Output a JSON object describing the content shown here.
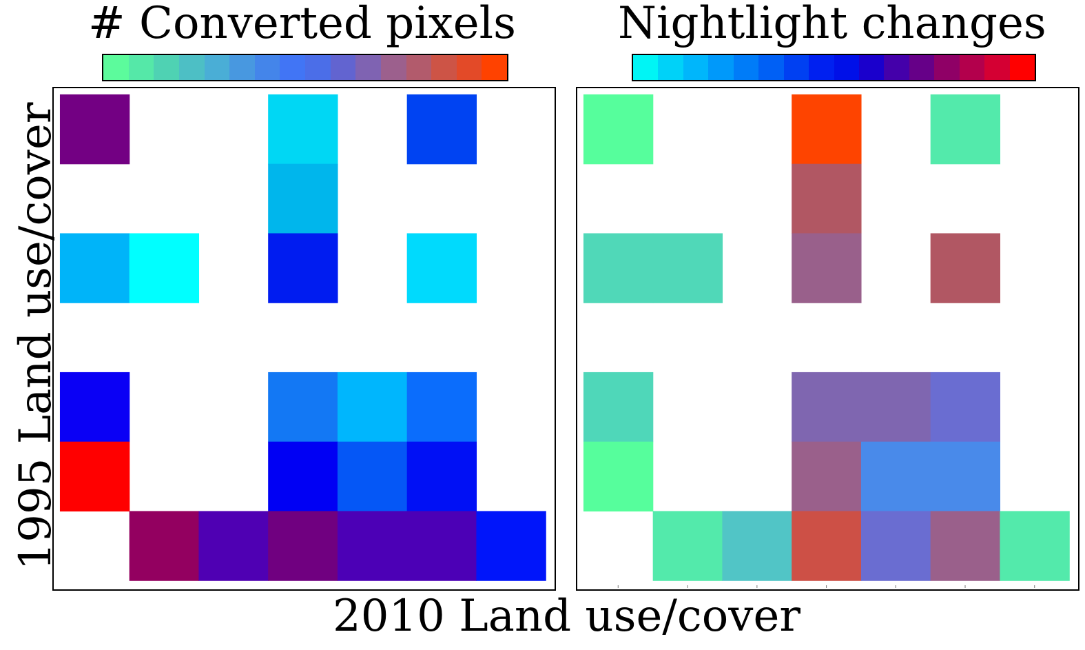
{
  "chart_data": [
    {
      "type": "heatmap",
      "title": "# Converted pixels",
      "xlabel": "2010 Land use/cover",
      "ylabel": "1995 Land use/cover",
      "grid": false,
      "n_rows": 7,
      "n_cols": 7,
      "colorbar": [
        "#5cfb9c",
        "#55e8a8",
        "#4fd2b3",
        "#4dbfc5",
        "#4aaed6",
        "#4898e0",
        "#4485ea",
        "#4175f5",
        "#4b6ee8",
        "#6264d0",
        "#7f63b2",
        "#9c608d",
        "#b25b6c",
        "#cd5446",
        "#e34a28",
        "#ff4200"
      ],
      "cells": [
        {
          "row": 0,
          "col": 0,
          "color": "#730083"
        },
        {
          "row": 0,
          "col": 3,
          "color": "#00d7f4"
        },
        {
          "row": 0,
          "col": 5,
          "color": "#0043f2"
        },
        {
          "row": 1,
          "col": 3,
          "color": "#00b6ec"
        },
        {
          "row": 2,
          "col": 0,
          "color": "#00b4f9"
        },
        {
          "row": 2,
          "col": 1,
          "color": "#00ffff"
        },
        {
          "row": 2,
          "col": 3,
          "color": "#001cf0"
        },
        {
          "row": 2,
          "col": 5,
          "color": "#00dafd"
        },
        {
          "row": 4,
          "col": 0,
          "color": "#0a00f5"
        },
        {
          "row": 4,
          "col": 3,
          "color": "#1378f4"
        },
        {
          "row": 4,
          "col": 4,
          "color": "#00b6fd"
        },
        {
          "row": 4,
          "col": 5,
          "color": "#0b6dfc"
        },
        {
          "row": 5,
          "col": 0,
          "color": "#ff0000"
        },
        {
          "row": 5,
          "col": 3,
          "color": "#0000f4"
        },
        {
          "row": 5,
          "col": 4,
          "color": "#0557f6"
        },
        {
          "row": 5,
          "col": 5,
          "color": "#0010f5"
        },
        {
          "row": 6,
          "col": 1,
          "color": "#930060"
        },
        {
          "row": 6,
          "col": 2,
          "color": "#4f00b3"
        },
        {
          "row": 6,
          "col": 3,
          "color": "#700080"
        },
        {
          "row": 6,
          "col": 4,
          "color": "#4c00b6"
        },
        {
          "row": 6,
          "col": 5,
          "color": "#4c00b6"
        },
        {
          "row": 6,
          "col": 6,
          "color": "#0015fa"
        }
      ]
    },
    {
      "type": "heatmap",
      "title": "Nightlight changes",
      "xlabel": "2010 Land use/cover",
      "ylabel": "1995 Land use/cover",
      "grid": false,
      "n_rows": 7,
      "n_cols": 7,
      "colorbar": [
        "#00f5f5",
        "#00d2f8",
        "#00b6fb",
        "#0099fa",
        "#007cf8",
        "#0060f5",
        "#0040f2",
        "#0020f0",
        "#0010e8",
        "#1a00cc",
        "#4400aa",
        "#660088",
        "#8f0066",
        "#b3004c",
        "#d40033",
        "#ff0000"
      ],
      "cells": [
        {
          "row": 0,
          "col": 0,
          "color": "#56fe9c"
        },
        {
          "row": 0,
          "col": 3,
          "color": "#fe4400"
        },
        {
          "row": 0,
          "col": 5,
          "color": "#53eaab"
        },
        {
          "row": 1,
          "col": 3,
          "color": "#b15763"
        },
        {
          "row": 2,
          "col": 0,
          "color": "#50d8b8"
        },
        {
          "row": 2,
          "col": 1,
          "color": "#50d8b8"
        },
        {
          "row": 2,
          "col": 3,
          "color": "#99608b"
        },
        {
          "row": 2,
          "col": 5,
          "color": "#b15763"
        },
        {
          "row": 4,
          "col": 0,
          "color": "#4fd7b9"
        },
        {
          "row": 4,
          "col": 3,
          "color": "#7f66b0"
        },
        {
          "row": 4,
          "col": 4,
          "color": "#7f66b0"
        },
        {
          "row": 4,
          "col": 5,
          "color": "#6a6dd1"
        },
        {
          "row": 5,
          "col": 0,
          "color": "#56fe9c"
        },
        {
          "row": 5,
          "col": 3,
          "color": "#9a608b"
        },
        {
          "row": 5,
          "col": 4,
          "color": "#498aea"
        },
        {
          "row": 5,
          "col": 5,
          "color": "#498aea"
        },
        {
          "row": 6,
          "col": 1,
          "color": "#53eaab"
        },
        {
          "row": 6,
          "col": 2,
          "color": "#51c5c6"
        },
        {
          "row": 6,
          "col": 3,
          "color": "#cd5046"
        },
        {
          "row": 6,
          "col": 4,
          "color": "#6a6dd1"
        },
        {
          "row": 6,
          "col": 5,
          "color": "#9a608b"
        },
        {
          "row": 6,
          "col": 6,
          "color": "#53eaab"
        }
      ]
    }
  ]
}
